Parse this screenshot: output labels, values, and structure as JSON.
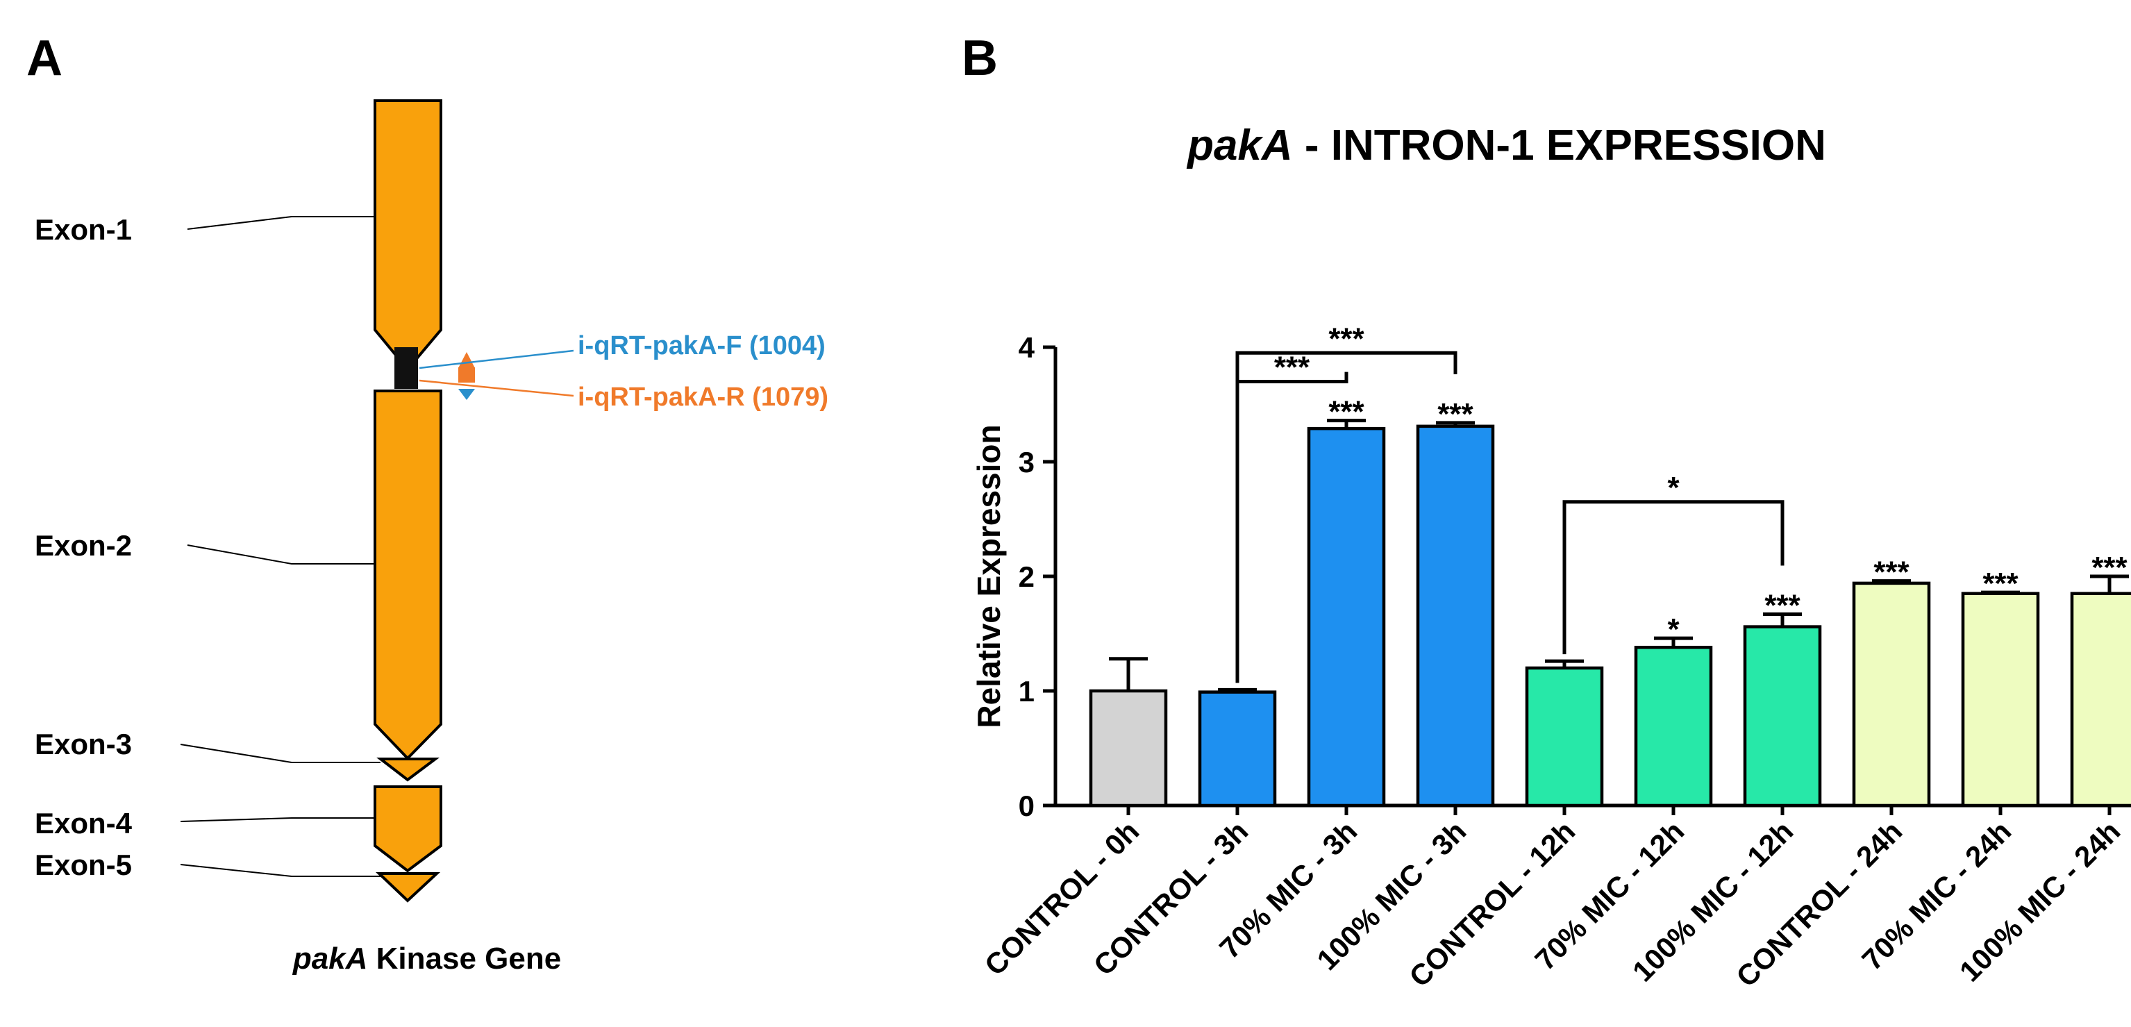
{
  "panelA": {
    "letter": "A",
    "exon_labels": [
      "Exon-1",
      "Exon-2",
      "Exon-3",
      "Exon-4",
      "Exon-5"
    ],
    "primer_f": "i-qRT-pakA-F (1004)",
    "primer_r": "i-qRT-pakA-R (1079)",
    "caption_italic": "pakA",
    "caption_rest": " Kinase Gene",
    "colors": {
      "exon": "#F9A10C",
      "primer_f": "#2A8FCC",
      "primer_r": "#F07A2A",
      "intron": "#111111"
    }
  },
  "panelB": {
    "letter": "B"
  },
  "chart_data": {
    "type": "bar",
    "title_italic": "pakA",
    "title_rest": " - INTRON-1 EXPRESSION",
    "ylabel": "Relative Expression",
    "xlabel": "",
    "ylim": [
      0,
      4
    ],
    "yticks": [
      0,
      1,
      2,
      3,
      4
    ],
    "categories": [
      "CONTROL - 0h",
      "CONTROL - 3h",
      "70% MIC - 3h",
      "100% MIC - 3h",
      "CONTROL - 12h",
      "70% MIC - 12h",
      "100% MIC - 12h",
      "CONTROL - 24h",
      "70% MIC - 24h",
      "100% MIC - 24h"
    ],
    "values": [
      1.0,
      0.99,
      3.29,
      3.31,
      1.2,
      1.38,
      1.56,
      1.94,
      1.85,
      1.85
    ],
    "errors": [
      0.28,
      0.02,
      0.07,
      0.03,
      0.06,
      0.08,
      0.11,
      0.02,
      0.01,
      0.15
    ],
    "bar_colors": [
      "#D3D3D3",
      "#1E90F0",
      "#1E90F0",
      "#1E90F0",
      "#27E8A8",
      "#27E8A8",
      "#27E8A8",
      "#EEFCC0",
      "#EEFCC0",
      "#EEFCC0"
    ],
    "bar_labels": [
      "",
      "",
      "***",
      "***",
      "",
      "*",
      "***",
      "***",
      "***",
      "***"
    ],
    "brackets": [
      {
        "from": 1,
        "to": 3,
        "label": "***",
        "level": 3.95
      },
      {
        "from": 1,
        "to": 2,
        "label": "***",
        "level": 3.7
      },
      {
        "from": 4,
        "to": 6,
        "label": "*",
        "level": 2.65
      }
    ],
    "grid": false
  }
}
